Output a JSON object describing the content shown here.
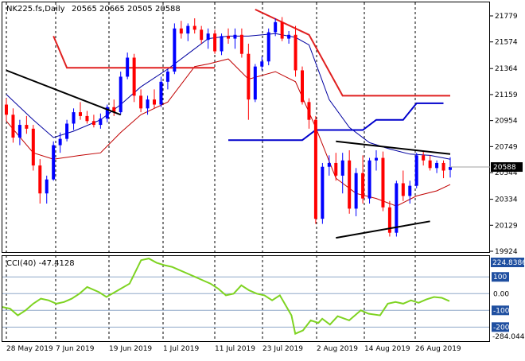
{
  "chart_data": [
    {
      "type": "candlestick",
      "title": "NK225.fs,Daily",
      "ohlc_header": "20565 20665 20505 20588",
      "last_price": "20588",
      "y_ticks": [
        "21779",
        "21574",
        "21364",
        "21159",
        "20954",
        "20749",
        "20544",
        "20334",
        "20129",
        "19924"
      ],
      "ylim": [
        19924,
        21830
      ],
      "x_ticks": [
        "28 May 2019",
        "7 Jun 2019",
        "19 Jun 2019",
        "1 Jul 2019",
        "11 Jul 2019",
        "23 Jul 2019",
        "2 Aug 2019",
        "14 Aug 2019",
        "26 Aug 2019"
      ],
      "colors": {
        "up": "#0000ff",
        "down": "#ff0000",
        "bb_mid": "#0000a0",
        "bb_low": "#c00000",
        "resistance": "#e02020",
        "support": "#0000cc",
        "trend": "#000000"
      },
      "candles": [
        [
          21080,
          21130,
          20950,
          21000
        ],
        [
          21000,
          21050,
          20780,
          20820
        ],
        [
          20820,
          20960,
          20760,
          20920
        ],
        [
          20920,
          20990,
          20850,
          20890
        ],
        [
          20890,
          20920,
          20560,
          20600
        ],
        [
          20600,
          20650,
          20300,
          20380
        ],
        [
          20380,
          20520,
          20300,
          20490
        ],
        [
          20490,
          20790,
          20480,
          20760
        ],
        [
          20760,
          20860,
          20700,
          20810
        ],
        [
          20810,
          20960,
          20790,
          20930
        ],
        [
          20930,
          21050,
          20880,
          21020
        ],
        [
          21020,
          21100,
          20960,
          20990
        ],
        [
          20990,
          21030,
          20930,
          20950
        ],
        [
          20950,
          21000,
          20900,
          20920
        ],
        [
          20920,
          21010,
          20890,
          20970
        ],
        [
          20970,
          21080,
          20940,
          21060
        ],
        [
          21060,
          21120,
          20990,
          21020
        ],
        [
          21020,
          21340,
          21000,
          21300
        ],
        [
          21300,
          21490,
          21280,
          21450
        ],
        [
          21450,
          21480,
          21100,
          21150
        ],
        [
          21150,
          21200,
          21020,
          21050
        ],
        [
          21050,
          21150,
          21000,
          21120
        ],
        [
          21120,
          21200,
          21050,
          21080
        ],
        [
          21080,
          21300,
          21060,
          21260
        ],
        [
          21260,
          21360,
          21200,
          21340
        ],
        [
          21340,
          21720,
          21320,
          21680
        ],
        [
          21680,
          21740,
          21600,
          21640
        ],
        [
          21640,
          21720,
          21580,
          21700
        ],
        [
          21700,
          21760,
          21640,
          21670
        ],
        [
          21670,
          21700,
          21560,
          21590
        ],
        [
          21590,
          21680,
          21520,
          21640
        ],
        [
          21640,
          21670,
          21480,
          21500
        ],
        [
          21500,
          21640,
          21470,
          21620
        ],
        [
          21620,
          21680,
          21560,
          21600
        ],
        [
          21600,
          21680,
          21520,
          21630
        ],
        [
          21630,
          21680,
          21450,
          21480
        ],
        [
          21480,
          21560,
          20960,
          21120
        ],
        [
          21120,
          21400,
          21100,
          21380
        ],
        [
          21380,
          21460,
          21350,
          21420
        ],
        [
          21420,
          21680,
          21390,
          21650
        ],
        [
          21650,
          21760,
          21620,
          21730
        ],
        [
          21730,
          21770,
          21580,
          21600
        ],
        [
          21600,
          21660,
          21560,
          21630
        ],
        [
          21630,
          21700,
          21300,
          21350
        ],
        [
          21350,
          21380,
          21080,
          21100
        ],
        [
          21100,
          21130,
          20890,
          20960
        ],
        [
          20960,
          20990,
          20140,
          20180
        ],
        [
          20180,
          20620,
          20140,
          20590
        ],
        [
          20590,
          20680,
          20520,
          20620
        ],
        [
          20620,
          20700,
          20480,
          20520
        ],
        [
          20520,
          20700,
          20380,
          20640
        ],
        [
          20640,
          20720,
          20220,
          20260
        ],
        [
          20260,
          20580,
          20200,
          20540
        ],
        [
          20540,
          20680,
          20300,
          20340
        ],
        [
          20340,
          20660,
          20300,
          20640
        ],
        [
          20640,
          20720,
          20560,
          20660
        ],
        [
          20660,
          20710,
          20240,
          20270
        ],
        [
          20270,
          20320,
          20040,
          20070
        ],
        [
          20070,
          20480,
          20040,
          20460
        ],
        [
          20460,
          20560,
          20320,
          20360
        ],
        [
          20360,
          20480,
          20300,
          20440
        ],
        [
          20440,
          20700,
          20420,
          20680
        ],
        [
          20680,
          20720,
          20600,
          20640
        ],
        [
          20640,
          20680,
          20560,
          20580
        ],
        [
          20580,
          20640,
          20540,
          20620
        ],
        [
          20620,
          20640,
          20500,
          20560
        ],
        [
          20565,
          20665,
          20505,
          20588
        ]
      ],
      "bb_mid": [
        [
          0,
          21160
        ],
        [
          4,
          20960
        ],
        [
          7,
          20820
        ],
        [
          10,
          20870
        ],
        [
          14,
          20960
        ],
        [
          17,
          21080
        ],
        [
          20,
          21220
        ],
        [
          24,
          21360
        ],
        [
          27,
          21480
        ],
        [
          30,
          21600
        ],
        [
          33,
          21620
        ],
        [
          36,
          21620
        ],
        [
          40,
          21640
        ],
        [
          43,
          21610
        ],
        [
          45,
          21550
        ],
        [
          48,
          21120
        ],
        [
          51,
          20900
        ],
        [
          54,
          20780
        ],
        [
          57,
          20730
        ],
        [
          60,
          20690
        ],
        [
          63,
          20680
        ],
        [
          66,
          20650
        ]
      ],
      "bb_low": [
        [
          0,
          20950
        ],
        [
          4,
          20700
        ],
        [
          7,
          20650
        ],
        [
          11,
          20680
        ],
        [
          14,
          20700
        ],
        [
          17,
          20860
        ],
        [
          20,
          21000
        ],
        [
          24,
          21100
        ],
        [
          28,
          21380
        ],
        [
          30,
          21400
        ],
        [
          33,
          21440
        ],
        [
          36,
          21280
        ],
        [
          40,
          21340
        ],
        [
          43,
          21260
        ],
        [
          46,
          20900
        ],
        [
          49,
          20500
        ],
        [
          52,
          20380
        ],
        [
          55,
          20340
        ],
        [
          58,
          20280
        ],
        [
          61,
          20360
        ],
        [
          64,
          20400
        ],
        [
          66,
          20450
        ]
      ],
      "resistance_lines": [
        [
          [
            7,
            21620
          ],
          [
            9,
            21370
          ],
          [
            31,
            21370
          ]
        ],
        [
          [
            37,
            21830
          ],
          [
            45,
            21630
          ],
          [
            50,
            21150
          ],
          [
            66,
            21150
          ]
        ]
      ],
      "support_lines": [
        [
          [
            33,
            20800
          ],
          [
            44,
            20800
          ],
          [
            46,
            20880
          ],
          [
            53,
            20880
          ],
          [
            55,
            20960
          ],
          [
            59,
            20960
          ],
          [
            61,
            21090
          ],
          [
            65,
            21090
          ]
        ]
      ],
      "trend_lines": [
        [
          [
            0,
            21350
          ],
          [
            17,
            21000
          ]
        ],
        [
          [
            49,
            20790
          ],
          [
            66,
            20690
          ]
        ],
        [
          [
            49,
            20030
          ],
          [
            63,
            20160
          ]
        ]
      ],
      "cci": {
        "label": "CCI(40) -47.4128",
        "max_label": "224.8386",
        "min_label": "-284.044",
        "y_ticks": [
          "100",
          "0.00",
          "-100",
          "-200"
        ],
        "ylim": [
          -284.044,
          224.8386
        ],
        "points": [
          [
            0,
            -80
          ],
          [
            2,
            -90
          ],
          [
            4,
            -130
          ],
          [
            6,
            -100
          ],
          [
            8,
            -60
          ],
          [
            10,
            -30
          ],
          [
            12,
            -40
          ],
          [
            14,
            -60
          ],
          [
            16,
            -50
          ],
          [
            18,
            -30
          ],
          [
            20,
            0
          ],
          [
            22,
            40
          ],
          [
            25,
            10
          ],
          [
            27,
            -20
          ],
          [
            30,
            20
          ],
          [
            33,
            60
          ],
          [
            36,
            200
          ],
          [
            38,
            210
          ],
          [
            40,
            185
          ],
          [
            42,
            170
          ],
          [
            44,
            160
          ],
          [
            46,
            140
          ],
          [
            48,
            120
          ],
          [
            50,
            100
          ],
          [
            52,
            80
          ],
          [
            54,
            60
          ],
          [
            56,
            30
          ],
          [
            58,
            -10
          ],
          [
            60,
            0
          ],
          [
            62,
            50
          ],
          [
            64,
            20
          ],
          [
            66,
            0
          ],
          [
            68,
            -10
          ],
          [
            70,
            -40
          ],
          [
            72,
            -10
          ],
          [
            73,
            -50
          ],
          [
            75,
            -130
          ],
          [
            76,
            -240
          ],
          [
            78,
            -220
          ],
          [
            80,
            -160
          ],
          [
            82,
            -175
          ],
          [
            83,
            -150
          ],
          [
            85,
            -185
          ],
          [
            87,
            -135
          ],
          [
            90,
            -160
          ],
          [
            93,
            -100
          ],
          [
            95,
            -120
          ],
          [
            98,
            -130
          ],
          [
            100,
            -60
          ],
          [
            102,
            -50
          ],
          [
            104,
            -60
          ],
          [
            106,
            -40
          ],
          [
            108,
            -55
          ],
          [
            110,
            -35
          ],
          [
            112,
            -20
          ],
          [
            114,
            -25
          ],
          [
            116,
            -45
          ]
        ]
      }
    }
  ]
}
